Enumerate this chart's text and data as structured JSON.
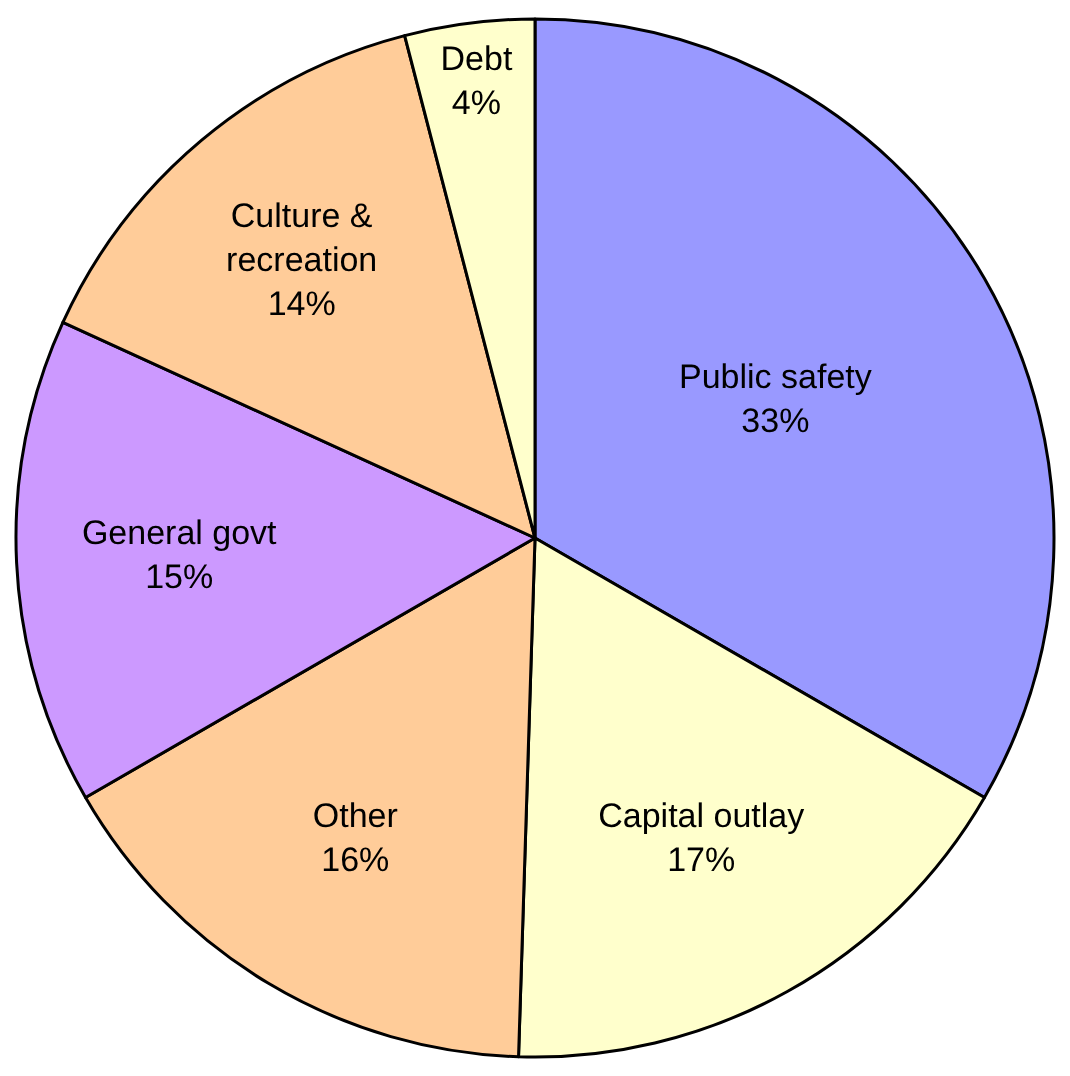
{
  "chart_data": {
    "type": "pie",
    "categories": [
      "Public safety",
      "Capital outlay",
      "Other",
      "General govt",
      "Culture &\nrecreation",
      "Debt"
    ],
    "values": [
      33,
      17,
      16,
      15,
      14,
      4
    ],
    "value_labels": [
      "33%",
      "17%",
      "16%",
      "15%",
      "14%",
      "4%"
    ],
    "colors": [
      "#9999ff",
      "#ffffcc",
      "#ffcc99",
      "#cc99ff",
      "#ffcc99",
      "#ffffcc"
    ],
    "legend": false
  }
}
